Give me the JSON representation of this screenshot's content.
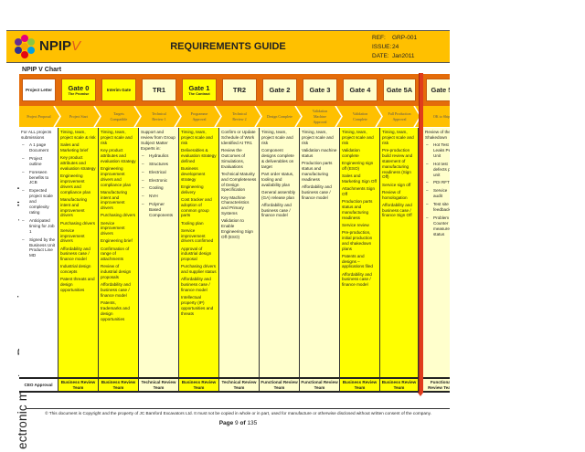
{
  "header": {
    "brand": "NPIP",
    "brand_suffix": "V",
    "title": "REQUIREMENTS GUIDE",
    "ref_label": "REF:",
    "ref": "GRP-001",
    "issue_label": "ISSUE:",
    "issue": "24",
    "date_label": "DATE:",
    "date": "Jan2011"
  },
  "chart_name": "NPIP V Chart",
  "side_notice": "ectronic master.   Paper copies are uncontrolled.",
  "colors": {
    "header": "#ffc000",
    "gate_band": "#e46c0a",
    "yellow": "#ffff00",
    "light_yellow": "#ffffcc",
    "divider": "#e03c1c"
  },
  "columns": [
    {
      "gate": "Project Letter",
      "sub": "",
      "small": true,
      "box": "#ffffff",
      "fill": "#ffffff",
      "stage": "Project Proposal",
      "intro": [
        "For ALL projects submissions"
      ],
      "list": [
        "A 1 page Document",
        "Project outline",
        "Foreseen benefits to JCB",
        "Expected project scale and complexity rating",
        "Anticipated timing for Job 1",
        "Signed by the Business Unit Product Line MD"
      ],
      "items": [],
      "approval": "CEO Approval"
    },
    {
      "gate": "Gate 0",
      "sub": "The Promise",
      "box": "#ffff00",
      "fill": "#ffff00",
      "stage": "Project Start",
      "intro": [],
      "list": [],
      "items": [
        "Timing, team, project scale & risk",
        "Sales and Marketing brief",
        "Key product attributes and evaluation strategy",
        "Engineering improvement drivers and compliance plan",
        "Manufacturing intent and improvement drivers",
        "Purchasing drivers",
        "Service improvement drivers",
        "Affordability and business case / finance model",
        "Industrial design concepts",
        "Patent threats and design opportunities"
      ],
      "approval": "Business Review Team"
    },
    {
      "gate": "Interim Gate",
      "sub": "",
      "small": true,
      "box": "#ffff00",
      "fill": "#ffff00",
      "stage": "Targets Compatible",
      "intro": [],
      "list": [],
      "items": [
        "Timing, team, project scale and risk",
        "Key product attributes and evaluation strategy",
        "Engineering improvement drivers and compliance plan",
        "Manufacturing intent and improvement drivers",
        "Purchasing drivers",
        "Service improvement drivers",
        "Engineering brief",
        "Confirmation of range of attachments",
        "Review of industrial design proposals",
        "Affordability and business case / finance model",
        "Patents, trademarks and design opportunities"
      ],
      "approval": "Business Review Team"
    },
    {
      "gate": "TR1",
      "sub": "",
      "box": "#ffffcc",
      "fill": "#ffffcc",
      "stage": "Technical Review 1",
      "intro": [
        "Support and review from Group Subject Matter Experts in:"
      ],
      "list": [
        "Hydraulics",
        "Structures",
        "Electrical",
        "Electronic",
        "Cooling",
        "NVH",
        "Polymer Based Components"
      ],
      "items": [],
      "approval": "Technical Review Team"
    },
    {
      "gate": "Gate 1",
      "sub": "The Contract",
      "box": "#ffff00",
      "fill": "#ffff00",
      "stage": "Programme Approval",
      "intro": [],
      "list": [],
      "items": [
        "Timing, team, project scale and risk",
        "Deliverables & evaluation strategy defined",
        "Business development strategy",
        "Engineering delivery",
        "Cost tracker and adoption of common group parts",
        "Tooling plan",
        "Service improvement drivers confirmed",
        "Approval of industrial design proposal",
        "Purchasing drivers and supplier status",
        "Affordability and business case / finance model",
        "Intellectual property (IP) opportunities and threats"
      ],
      "approval": "Business Review Team"
    },
    {
      "gate": "TR2",
      "sub": "",
      "box": "#ffffcc",
      "fill": "#ffffcc",
      "stage": "Technical Review 2",
      "intro": [],
      "list": [],
      "items": [
        "Confirm or Update Schedule of Work Identified At TR1",
        "Review the Outcomes of Simulations, Evaluations",
        "Technical Maturity and Completeness of Design Specification",
        "Key Machine Characteristics and Primary Systems",
        "Validation to Enable Engineering Sign Off (ESO)"
      ],
      "approval": "Technical Review Team"
    },
    {
      "gate": "Gate 2",
      "sub": "",
      "box": "#ffffcc",
      "fill": "#ffffcc",
      "stage": "Design Complete",
      "intro": [],
      "list": [],
      "items": [
        "Timing, team, project scale and risk",
        "Component designs complete & deliverables on target",
        "Part order status, tooling and availability plan",
        "General assembly (GA) release plan",
        "Affordability and business case / finance model"
      ],
      "approval": "Functional Review Team"
    },
    {
      "gate": "Gate 3",
      "sub": "",
      "box": "#ffffcc",
      "fill": "#ffffcc",
      "stage": "Validation Machine Approval",
      "intro": [],
      "list": [],
      "items": [
        "Timing, team, project scale and risk",
        "Validation machine status",
        "Production parts status and manufacturing readiness",
        "Affordability and business case / finance model"
      ],
      "approval": "Functional Review Team"
    },
    {
      "gate": "Gate 4",
      "sub": "",
      "box": "#ffffcc",
      "fill": "#ffff00",
      "stage": "Validation Complete",
      "intro": [],
      "list": [],
      "items": [
        "Timing, team, project scale and risk",
        "Validation complete",
        "Engineering sign off (ESO)",
        "Sales and Marketing Sign Off",
        "Attachments Sign Off",
        "Production parts status and manufacturing readiness",
        "Service review",
        "Pre-production, initial production and shakedown plans",
        "Patents and designs – applications filed",
        "Affordability and business case / finance model"
      ],
      "approval": "Business Review Team"
    },
    {
      "gate": "Gate 5A",
      "sub": "",
      "box": "#ffffcc",
      "fill": "#ffff00",
      "stage": "Full Production Approval",
      "intro": [],
      "list": [],
      "items": [
        "Timing, team, project scale and risk",
        "Pre-production build review and statement of manufacturing readiness (Sign Off)",
        "Service sign off",
        "Review of homologation",
        "Affordability and business case / finance Sign Off"
      ],
      "approval": "Business Review Team"
    },
    {
      "gate": "Gate 5",
      "sub": "",
      "box": "#ffffcc",
      "fill": "#ffffcc",
      "stage": "OK to Ship",
      "intro": [
        "Review of the Shakedown"
      ],
      "list": [
        "Hot Test Leaks Per Unit",
        "Hot test defects per unit",
        "PDI RFT",
        "Service audit",
        "Test site feedback",
        "Problem Counter measure status"
      ],
      "items": [],
      "approval": "Functional Review Team"
    }
  ],
  "footer": {
    "copyright": "© This document is Copyright and the property of JC Bamford Excavators Ltd.  It must not be copied in whole or in part, used for manufacture or otherwise disclosed without written consent of the company.",
    "page_label": "Page",
    "page": "9",
    "of_label": "of",
    "total": "135"
  }
}
